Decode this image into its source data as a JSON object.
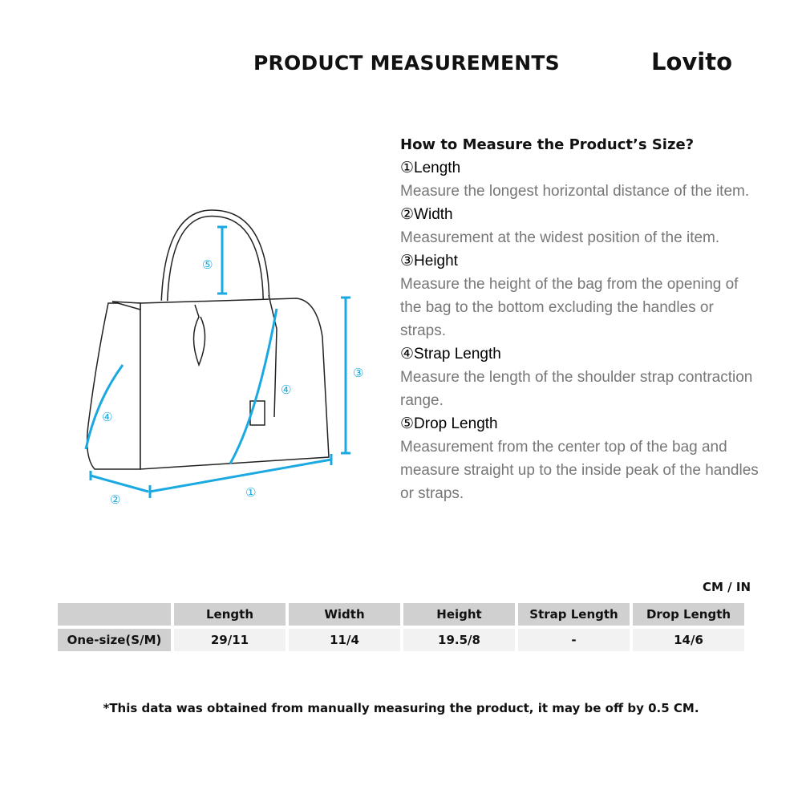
{
  "header": {
    "title": "PRODUCT MEASUREMENTS",
    "brand": "Lovito"
  },
  "diagram": {
    "labels": [
      "①",
      "②",
      "③",
      "④",
      "⑤"
    ],
    "accent_color": "#1aa9e0"
  },
  "guide": {
    "question": "How to Measure the Product’s Size?",
    "items": [
      {
        "heading": "①Length",
        "description": "Measure the longest horizontal distance of the item."
      },
      {
        "heading": "②Width",
        "description": "Measurement at the widest position of the item."
      },
      {
        "heading": "③Height",
        "description": "Measure the height of the bag from the opening of the bag to the bottom excluding the handles or straps."
      },
      {
        "heading": "④Strap Length",
        "description": "Measure the length of the shoulder strap contraction range."
      },
      {
        "heading": "⑤Drop Length",
        "description": "Measurement from the center top of the bag and measure straight up to the inside peak of the handles or straps."
      }
    ]
  },
  "table": {
    "unit": "CM / IN",
    "columns": [
      "",
      "Length",
      "Width",
      "Height",
      "Strap Length",
      "Drop Length"
    ],
    "rows": [
      [
        "One-size(S/M)",
        "29/11",
        "11/4",
        "19.5/8",
        "-",
        "14/6"
      ]
    ]
  },
  "footnote": "*This data was obtained from manually measuring the product, it may be off by 0.5 CM."
}
